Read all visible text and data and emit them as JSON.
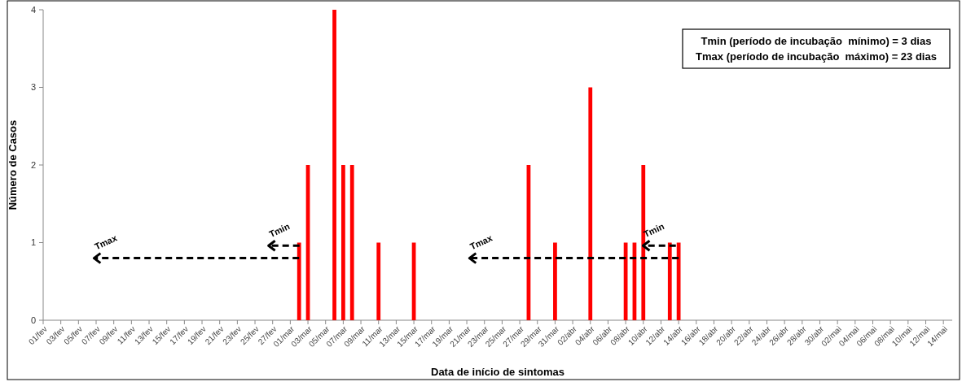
{
  "chart_data": {
    "type": "bar",
    "xlabel": "Data de início de sintomas",
    "ylabel": "Número de Casos",
    "xlim": [
      "--02-01",
      "--05-15"
    ],
    "xticks": [
      {
        "value": "--02-01",
        "label": "01/fev"
      },
      {
        "value": "--02-03",
        "label": "03/fev"
      },
      {
        "value": "--02-05",
        "label": "05/fev"
      },
      {
        "value": "--02-07",
        "label": "07/fev"
      },
      {
        "value": "--02-09",
        "label": "09/fev"
      },
      {
        "value": "--02-11",
        "label": "11/fev"
      },
      {
        "value": "--02-13",
        "label": "13/fev"
      },
      {
        "value": "--02-15",
        "label": "15/fev"
      },
      {
        "value": "--02-17",
        "label": "17/fev"
      },
      {
        "value": "--02-19",
        "label": "19/fev"
      },
      {
        "value": "--02-21",
        "label": "21/fev"
      },
      {
        "value": "--02-23",
        "label": "23/fev"
      },
      {
        "value": "--02-25",
        "label": "25/fev"
      },
      {
        "value": "--02-27",
        "label": "27/fev"
      },
      {
        "value": "--03-01",
        "label": "01/mar"
      },
      {
        "value": "--03-03",
        "label": "03/mar"
      },
      {
        "value": "--03-05",
        "label": "05/mar"
      },
      {
        "value": "--03-07",
        "label": "07/mar"
      },
      {
        "value": "--03-09",
        "label": "09/mar"
      },
      {
        "value": "--03-11",
        "label": "11/mar"
      },
      {
        "value": "--03-13",
        "label": "13/mar"
      },
      {
        "value": "--03-15",
        "label": "15/mar"
      },
      {
        "value": "--03-17",
        "label": "17/mar"
      },
      {
        "value": "--03-19",
        "label": "19/mar"
      },
      {
        "value": "--03-21",
        "label": "21/mar"
      },
      {
        "value": "--03-23",
        "label": "23/mar"
      },
      {
        "value": "--03-25",
        "label": "25/mar"
      },
      {
        "value": "--03-27",
        "label": "27/mar"
      },
      {
        "value": "--03-29",
        "label": "29/mar"
      },
      {
        "value": "--03-31",
        "label": "31/mar"
      },
      {
        "value": "--04-02",
        "label": "02/abr"
      },
      {
        "value": "--04-04",
        "label": "04/abr"
      },
      {
        "value": "--04-06",
        "label": "06/abr"
      },
      {
        "value": "--04-08",
        "label": "08/abr"
      },
      {
        "value": "--04-10",
        "label": "10/abr"
      },
      {
        "value": "--04-12",
        "label": "12/abr"
      },
      {
        "value": "--04-14",
        "label": "14/abr"
      },
      {
        "value": "--04-16",
        "label": "16/abr"
      },
      {
        "value": "--04-18",
        "label": "18/abr"
      },
      {
        "value": "--04-20",
        "label": "20/abr"
      },
      {
        "value": "--04-22",
        "label": "22/abr"
      },
      {
        "value": "--04-24",
        "label": "24/abr"
      },
      {
        "value": "--04-26",
        "label": "26/abr"
      },
      {
        "value": "--04-28",
        "label": "28/abr"
      },
      {
        "value": "--04-30",
        "label": "30/abr"
      },
      {
        "value": "--05-02",
        "label": "02/mai"
      },
      {
        "value": "--05-04",
        "label": "04/mai"
      },
      {
        "value": "--05-06",
        "label": "06/mai"
      },
      {
        "value": "--05-08",
        "label": "08/mai"
      },
      {
        "value": "--05-10",
        "label": "10/mai"
      },
      {
        "value": "--05-12",
        "label": "12/mai"
      },
      {
        "value": "--05-14",
        "label": "14/mai"
      }
    ],
    "ylim": [
      0,
      4
    ],
    "yticks": [
      0,
      1,
      2,
      3,
      4
    ],
    "series": [
      {
        "color": "#ff0000",
        "x": [
          "--03-02",
          "--03-03",
          "--03-06",
          "--03-07",
          "--03-08",
          "--03-11",
          "--03-15",
          "--03-28",
          "--03-31",
          "--04-04",
          "--04-08",
          "--04-09",
          "--04-10",
          "--04-13",
          "--04-14"
        ],
        "values": [
          1,
          2,
          4,
          2,
          2,
          1,
          1,
          2,
          1,
          3,
          1,
          1,
          2,
          1,
          1
        ]
      }
    ],
    "annotations": [
      "Tmin (período de incubação  mínimo) = 3 dias",
      "Tmax (período de incubação  máximo) = 23 dias",
      {
        "text": "Tmax",
        "x": "--03-02",
        "y": 0.8
      },
      "Tmin",
      {
        "text": "Tmax",
        "x": "--04-14",
        "y": 0.8
      },
      "Tmin"
    ]
  }
}
